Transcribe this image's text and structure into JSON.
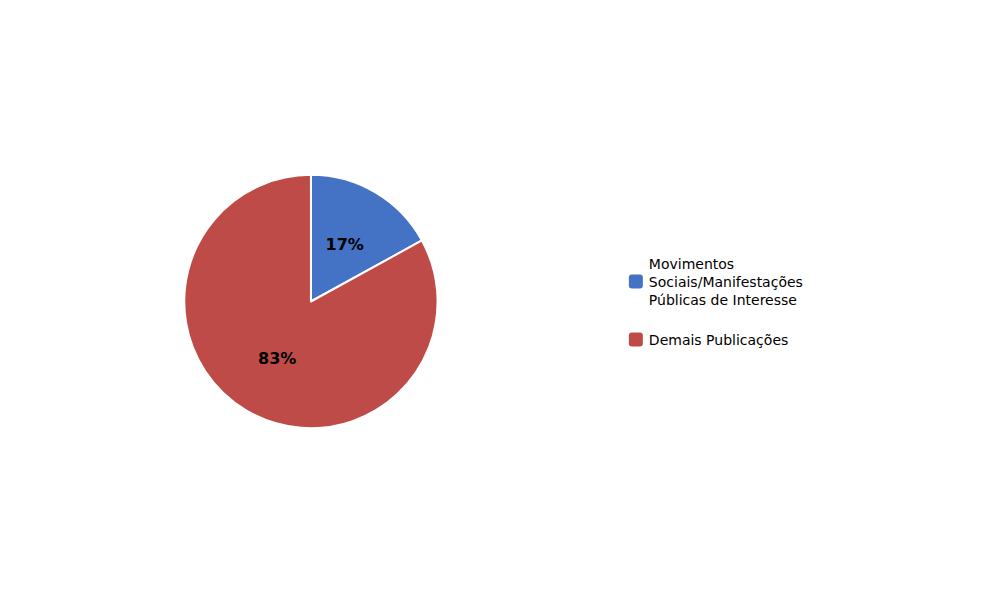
{
  "chart_data": {
    "type": "pie",
    "categories": [
      "Movimentos\nSociais/Manifestações\nPúblicas de Interesse",
      "Demais Publicações"
    ],
    "values": [
      17,
      83
    ],
    "value_labels": [
      "17%",
      "83%"
    ],
    "colors": [
      "#4472C4",
      "#BE4B48"
    ],
    "data_labels": true,
    "legend": "right"
  }
}
